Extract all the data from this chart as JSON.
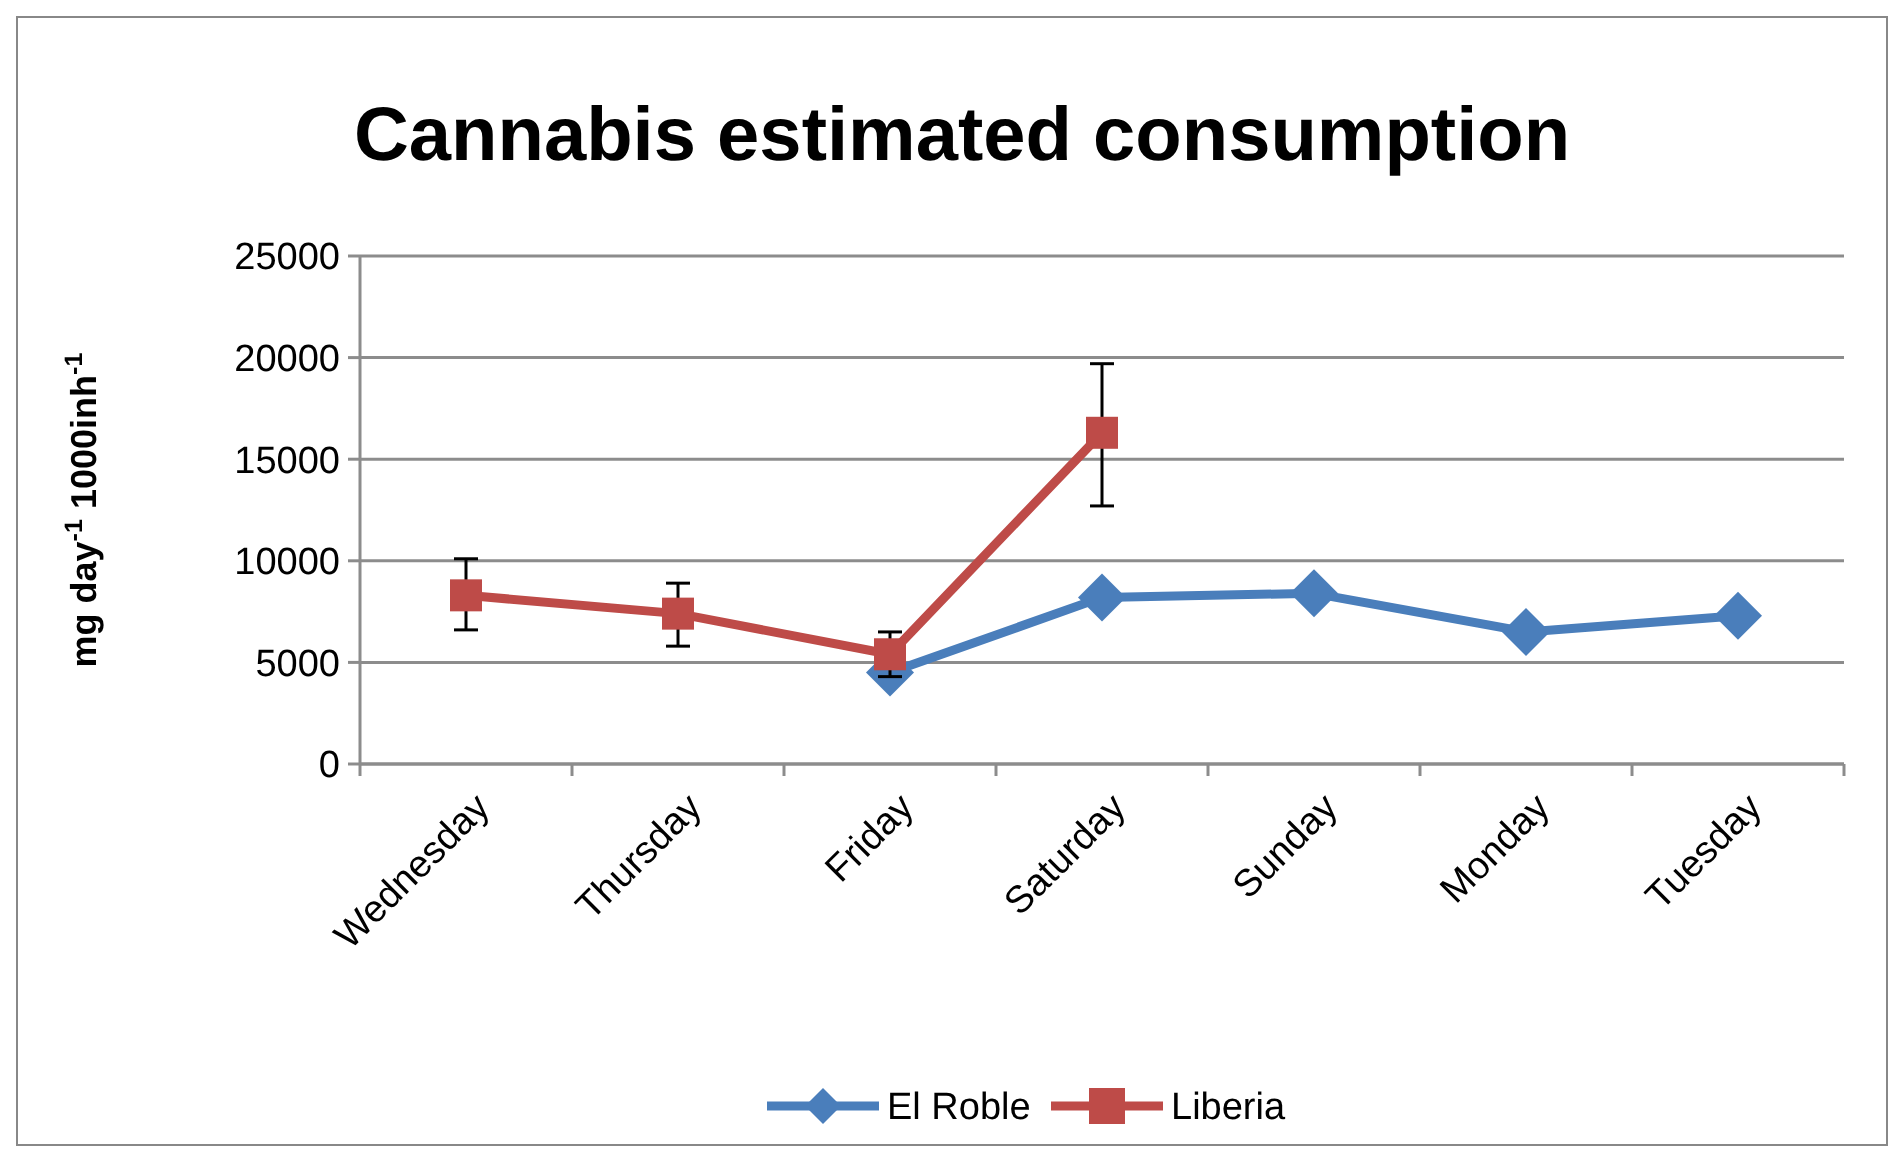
{
  "chart_data": {
    "type": "line",
    "title": "Cannabis estimated consumption",
    "ylabel": "mg day$^{-1}$ 1000inh$^{-1}$",
    "categories": [
      "Wednesday",
      "Thursday",
      "Friday",
      "Saturday",
      "Sunday",
      "Monday",
      "Tuesday"
    ],
    "series": [
      {
        "name": "El Roble",
        "color": "#4a7ebb",
        "marker": "diamond",
        "values": [
          null,
          null,
          4500,
          8200,
          8400,
          6500,
          7300
        ]
      },
      {
        "name": "Liberia",
        "color": "#be4b48",
        "marker": "square",
        "values": [
          8300,
          7400,
          5400,
          16300,
          null,
          null,
          null
        ],
        "errors": [
          [
            6600,
            10100
          ],
          [
            5800,
            8900
          ],
          [
            4300,
            6500
          ],
          [
            12700,
            19700
          ],
          null,
          null,
          null
        ]
      }
    ],
    "ylim": [
      0,
      25000
    ],
    "yticks": [
      0,
      5000,
      10000,
      15000,
      20000,
      25000
    ],
    "grid": "y",
    "legend": "bottom"
  }
}
